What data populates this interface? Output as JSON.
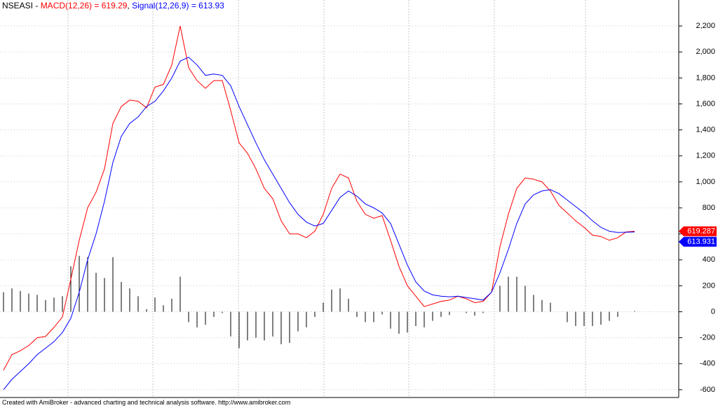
{
  "chart_data": {
    "type": "macd",
    "header": [
      {
        "text": "NSEASI - ",
        "color": "#000000"
      },
      {
        "text": "MACD(12,26) = 619.29",
        "color": "#ff0000"
      },
      {
        "text": ", ",
        "color": "#000000"
      },
      {
        "text": "Signal(12,26,9) = 613.93",
        "color": "#0000ff"
      }
    ],
    "footer": "Created with AmiBroker - advanced charting and technical analysis software. http://www.amibroker.com",
    "ylim": [
      -660,
      2400
    ],
    "yticks": [
      -600,
      -400,
      -200,
      0,
      200,
      400,
      600,
      800,
      {
        "value": 1000,
        "label": "1,000"
      },
      {
        "value": 1200,
        "label": "1,200"
      },
      {
        "value": 1400,
        "label": "1,400"
      },
      {
        "value": 1600,
        "label": "1,600"
      },
      {
        "value": 1800,
        "label": "1,800"
      },
      {
        "value": 2000,
        "label": "2,000"
      },
      {
        "value": 2200,
        "label": "2,200"
      }
    ],
    "grid": true,
    "series": [
      {
        "name": "MACD(12,26)",
        "color": "#ff0000",
        "kind": "line",
        "last_value": 619.287,
        "values": [
          -450,
          -330,
          -300,
          -260,
          -200,
          -190,
          -120,
          -40,
          250,
          550,
          800,
          920,
          1100,
          1450,
          1580,
          1630,
          1620,
          1570,
          1730,
          1750,
          1900,
          2200,
          1880,
          1780,
          1720,
          1780,
          1780,
          1550,
          1300,
          1220,
          1100,
          950,
          870,
          700,
          600,
          600,
          570,
          620,
          750,
          950,
          1060,
          1030,
          850,
          750,
          720,
          740,
          550,
          350,
          200,
          120,
          40,
          60,
          80,
          90,
          120,
          100,
          70,
          80,
          150,
          500,
          750,
          950,
          1030,
          1020,
          1000,
          930,
          820,
          760,
          700,
          650,
          590,
          580,
          550,
          570,
          615,
          619.29
        ]
      },
      {
        "name": "Signal(12,26,9)",
        "color": "#0000ff",
        "kind": "line",
        "last_value": 613.931,
        "values": [
          -600,
          -520,
          -460,
          -400,
          -330,
          -280,
          -230,
          -160,
          -50,
          150,
          400,
          600,
          850,
          1150,
          1350,
          1450,
          1500,
          1580,
          1620,
          1700,
          1800,
          1930,
          1960,
          1900,
          1820,
          1830,
          1820,
          1740,
          1580,
          1440,
          1300,
          1170,
          1060,
          950,
          840,
          750,
          690,
          660,
          680,
          780,
          880,
          930,
          890,
          830,
          800,
          760,
          680,
          520,
          360,
          230,
          160,
          130,
          120,
          115,
          120,
          110,
          100,
          90,
          150,
          300,
          480,
          680,
          830,
          900,
          930,
          940,
          910,
          860,
          810,
          760,
          700,
          650,
          620,
          610,
          612,
          613.93
        ]
      },
      {
        "color": "#000000",
        "kind": "bar",
        "values": [
          150,
          180,
          160,
          140,
          130,
          90,
          110,
          120,
          350,
          430,
          420,
          300,
          260,
          420,
          230,
          180,
          120,
          20,
          110,
          50,
          100,
          270,
          -80,
          -120,
          -100,
          -40,
          -10,
          -190,
          -280,
          -220,
          -200,
          -220,
          -190,
          -250,
          -240,
          -150,
          -120,
          -40,
          70,
          170,
          180,
          100,
          -40,
          -80,
          -80,
          -20,
          -130,
          -170,
          -160,
          -110,
          -120,
          -70,
          -40,
          -25,
          0,
          -10,
          -30,
          -10,
          0,
          200,
          270,
          270,
          200,
          130,
          90,
          70,
          0,
          -80,
          -110,
          -110,
          -110,
          -100,
          -70,
          -40,
          0,
          5
        ]
      }
    ]
  }
}
